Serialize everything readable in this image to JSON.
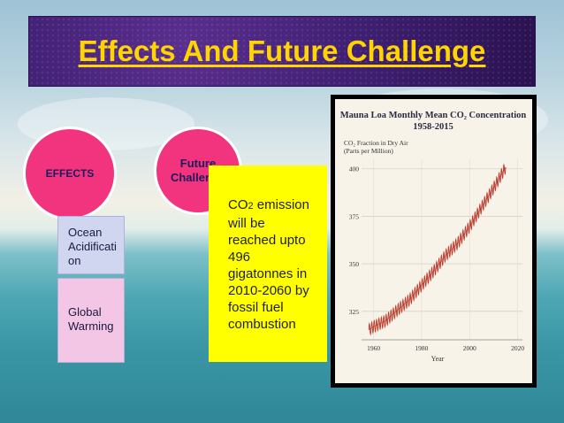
{
  "slide": {
    "title": "Effects And Future Challenge"
  },
  "effects_circle": {
    "label": "EFFECTS"
  },
  "future_circle": {
    "label_line1": "Future",
    "label_line2": "Challenge"
  },
  "effects_items": [
    {
      "line1": "Ocean",
      "line2": "Acidificati",
      "line3": "on"
    },
    {
      "line1": "Global",
      "line2": "Warming"
    }
  ],
  "future_text": {
    "line1_prefix": "CO",
    "line1_sub": "2",
    "line1_suffix": " emission",
    "line2": "will be",
    "line3": "reached upto",
    "line4": "496",
    "line5": "gigatonnes in",
    "line6": "2010-2060 by",
    "line7": "fossil fuel",
    "line8": "combustion"
  },
  "colors": {
    "title": "#ffd400",
    "circle": "#f2337e",
    "yellow_box": "#ffff00",
    "series": "#c0392b"
  },
  "chart_data": {
    "type": "line",
    "title": "Mauna Loa Monthly Mean CO₂ Concentration",
    "subtitle": "1958-2015",
    "ylabel_line1": "CO₂ Fraction in Dry Air",
    "ylabel_line2": "(Parts per Million)",
    "xlabel": "Year",
    "xlim": [
      1955,
      2022
    ],
    "ylim": [
      310,
      405
    ],
    "x_ticks": [
      1960,
      1980,
      2000,
      2020
    ],
    "y_ticks": [
      325,
      350,
      375,
      400
    ],
    "grid": true,
    "trend_points": [
      [
        1958,
        315.3
      ],
      [
        1960,
        316.9
      ],
      [
        1965,
        320.0
      ],
      [
        1970,
        325.7
      ],
      [
        1975,
        331.1
      ],
      [
        1980,
        338.7
      ],
      [
        1985,
        346.1
      ],
      [
        1990,
        354.4
      ],
      [
        1995,
        360.8
      ],
      [
        2000,
        369.6
      ],
      [
        2005,
        379.8
      ],
      [
        2010,
        389.9
      ],
      [
        2015,
        400.8
      ]
    ],
    "seasonal_amplitude": 3
  }
}
